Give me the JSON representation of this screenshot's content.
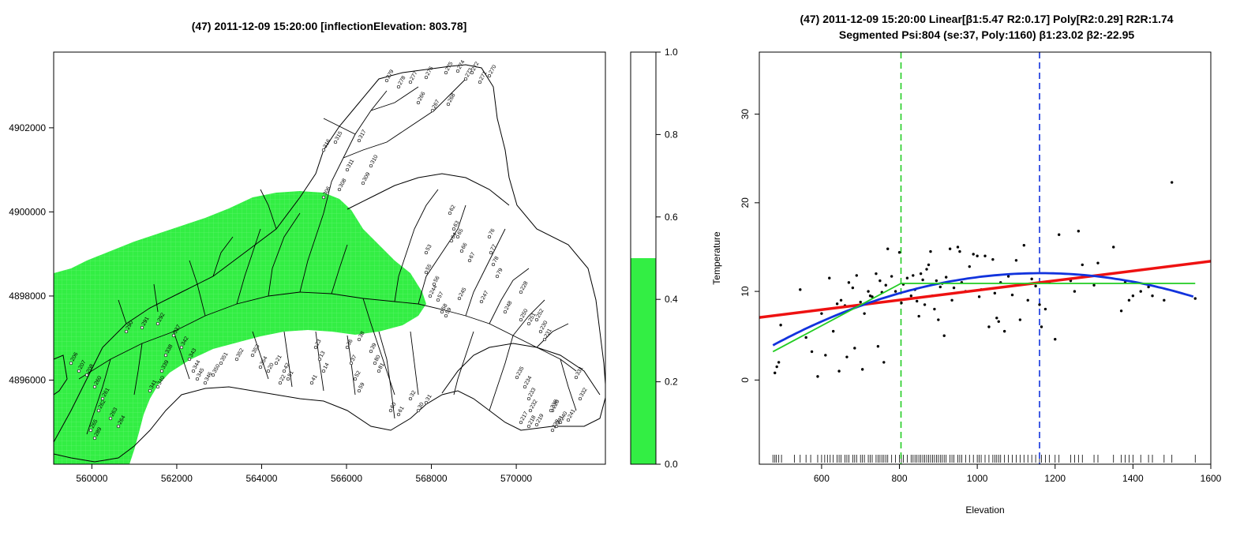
{
  "left_map": {
    "title": "(47) 2011-12-09 15:20:00 [inflectionElevation: 803.78]",
    "x_ticks": [
      "560000",
      "562000",
      "564000",
      "566000",
      "568000",
      "570000"
    ],
    "x_tick_values": [
      560000,
      562000,
      564000,
      566000,
      568000,
      570000
    ],
    "y_ticks": [
      "4902000",
      "4900000",
      "4898000",
      "4896000"
    ],
    "y_tick_values": [
      4902000,
      4900000,
      4898000,
      4896000
    ],
    "xlim": [
      559100,
      572100
    ],
    "ylim": [
      4894000,
      4903800
    ],
    "colors": {
      "highlight": "#33ee44",
      "outline": "#000000"
    },
    "site_labels": [
      "279",
      "278",
      "277",
      "276",
      "275",
      "274",
      "272",
      "270",
      "273",
      "271",
      "266",
      "267",
      "268",
      "316",
      "315",
      "317",
      "311",
      "309",
      "310",
      "306",
      "308",
      "62",
      "63",
      "64",
      "65",
      "66",
      "67",
      "76",
      "77",
      "78",
      "79",
      "53",
      "55",
      "56",
      "57",
      "58",
      "59",
      "244",
      "245",
      "247",
      "248",
      "250",
      "251",
      "252",
      "228",
      "230",
      "231",
      "235",
      "234",
      "233",
      "232",
      "217",
      "218",
      "219",
      "220",
      "241",
      "240",
      "241",
      "239",
      "238",
      "331",
      "332",
      "206",
      "207",
      "208",
      "260",
      "261",
      "262",
      "263",
      "264",
      "265",
      "289",
      "290",
      "291",
      "292",
      "337",
      "338",
      "339",
      "340",
      "341",
      "342",
      "343",
      "344",
      "345",
      "346",
      "350",
      "351",
      "352",
      "353",
      "354",
      "20",
      "21",
      "22",
      "23",
      "13",
      "14",
      "41",
      "42",
      "51",
      "52",
      "59",
      "60",
      "61",
      "30",
      "31",
      "32",
      "36",
      "37",
      "38",
      "39",
      "80",
      "81"
    ]
  },
  "colorbar": {
    "ticks": [
      "1.0",
      "0.8",
      "0.6",
      "0.4",
      "0.2",
      "0.0"
    ],
    "tick_values": [
      1.0,
      0.8,
      0.6,
      0.4,
      0.2,
      0.0
    ],
    "fill_value": 0.5,
    "fill_color": "#33ee44"
  },
  "chart_data": {
    "type": "scatter",
    "title": "(47) 2011-12-09 15:20:00 Linear[β1:5.47 R2:0.17] Poly[R2:0.29] R2R:1.74",
    "subtitle": "Segmented Psi:804 (se:37, Poly:1160) β1:23.02 β2:-22.95",
    "xlabel": "Elevation",
    "ylabel": "Temperature",
    "xlim": [
      440,
      1600
    ],
    "ylim": [
      -9.5,
      37
    ],
    "x_ticks": [
      "600",
      "800",
      "1000",
      "1200",
      "1400",
      "1600"
    ],
    "x_tick_values": [
      600,
      800,
      1000,
      1200,
      1400,
      1600
    ],
    "y_ticks": [
      "0",
      "10",
      "20",
      "30"
    ],
    "y_tick_values": [
      0,
      10,
      20,
      30
    ],
    "points": [
      [
        480,
        0.8
      ],
      [
        485,
        1.5
      ],
      [
        490,
        2.0
      ],
      [
        495,
        6.2
      ],
      [
        545,
        10.2
      ],
      [
        560,
        4.8
      ],
      [
        575,
        3.2
      ],
      [
        590,
        0.4
      ],
      [
        600,
        7.5
      ],
      [
        610,
        2.8
      ],
      [
        620,
        11.5
      ],
      [
        630,
        5.5
      ],
      [
        640,
        8.6
      ],
      [
        645,
        1.0
      ],
      [
        650,
        9.0
      ],
      [
        660,
        8.4
      ],
      [
        665,
        2.6
      ],
      [
        670,
        11.0
      ],
      [
        680,
        10.4
      ],
      [
        685,
        3.6
      ],
      [
        690,
        11.8
      ],
      [
        700,
        8.8
      ],
      [
        705,
        1.2
      ],
      [
        710,
        7.5
      ],
      [
        720,
        10.0
      ],
      [
        725,
        9.5
      ],
      [
        730,
        9.4
      ],
      [
        740,
        12.0
      ],
      [
        745,
        3.8
      ],
      [
        750,
        11.2
      ],
      [
        755,
        9.9
      ],
      [
        760,
        2.0
      ],
      [
        765,
        10.7
      ],
      [
        770,
        14.8
      ],
      [
        780,
        11.7
      ],
      [
        790,
        10.0
      ],
      [
        800,
        14.4
      ],
      [
        805,
        8.7
      ],
      [
        810,
        10.8
      ],
      [
        820,
        11.5
      ],
      [
        830,
        9.5
      ],
      [
        835,
        11.8
      ],
      [
        840,
        10.2
      ],
      [
        845,
        8.9
      ],
      [
        850,
        7.2
      ],
      [
        855,
        12.0
      ],
      [
        860,
        11.3
      ],
      [
        865,
        8.5
      ],
      [
        870,
        12.5
      ],
      [
        875,
        13.0
      ],
      [
        880,
        14.5
      ],
      [
        885,
        9.5
      ],
      [
        890,
        8.0
      ],
      [
        895,
        11.2
      ],
      [
        900,
        6.8
      ],
      [
        905,
        10.5
      ],
      [
        910,
        10.9
      ],
      [
        915,
        5.0
      ],
      [
        920,
        11.6
      ],
      [
        930,
        14.8
      ],
      [
        935,
        9.0
      ],
      [
        940,
        10.4
      ],
      [
        950,
        15.0
      ],
      [
        955,
        14.5
      ],
      [
        960,
        11.0
      ],
      [
        970,
        10.0
      ],
      [
        980,
        12.8
      ],
      [
        990,
        14.2
      ],
      [
        1000,
        14.0
      ],
      [
        1005,
        9.4
      ],
      [
        1010,
        10.2
      ],
      [
        1020,
        14.0
      ],
      [
        1030,
        6.0
      ],
      [
        1040,
        13.6
      ],
      [
        1045,
        9.8
      ],
      [
        1050,
        7.0
      ],
      [
        1055,
        6.6
      ],
      [
        1060,
        11.0
      ],
      [
        1070,
        5.5
      ],
      [
        1080,
        11.7
      ],
      [
        1090,
        9.6
      ],
      [
        1100,
        13.5
      ],
      [
        1110,
        6.8
      ],
      [
        1120,
        15.2
      ],
      [
        1130,
        9.0
      ],
      [
        1140,
        11.4
      ],
      [
        1150,
        10.6
      ],
      [
        1160,
        8.5
      ],
      [
        1165,
        6.0
      ],
      [
        1175,
        8.0
      ],
      [
        1185,
        11.0
      ],
      [
        1200,
        4.6
      ],
      [
        1210,
        16.4
      ],
      [
        1240,
        11.2
      ],
      [
        1250,
        10.0
      ],
      [
        1260,
        16.8
      ],
      [
        1270,
        13.0
      ],
      [
        1300,
        10.7
      ],
      [
        1310,
        13.2
      ],
      [
        1350,
        15.0
      ],
      [
        1370,
        7.8
      ],
      [
        1380,
        11.0
      ],
      [
        1390,
        9.0
      ],
      [
        1400,
        9.5
      ],
      [
        1420,
        10.0
      ],
      [
        1440,
        10.5
      ],
      [
        1450,
        9.5
      ],
      [
        1480,
        9.0
      ],
      [
        1500,
        22.3
      ],
      [
        1560,
        9.2
      ]
    ],
    "rug_x": [
      475,
      480,
      484,
      490,
      497,
      530,
      545,
      560,
      572,
      590,
      600,
      608,
      615,
      622,
      630,
      640,
      645,
      650,
      660,
      665,
      670,
      680,
      685,
      690,
      700,
      705,
      710,
      720,
      725,
      730,
      740,
      745,
      750,
      755,
      760,
      765,
      770,
      780,
      790,
      800,
      805,
      810,
      820,
      830,
      835,
      840,
      845,
      850,
      855,
      860,
      865,
      870,
      875,
      880,
      885,
      890,
      895,
      900,
      905,
      910,
      915,
      920,
      930,
      935,
      940,
      950,
      955,
      960,
      970,
      980,
      990,
      1000,
      1005,
      1010,
      1020,
      1030,
      1040,
      1045,
      1050,
      1055,
      1060,
      1070,
      1080,
      1090,
      1100,
      1110,
      1120,
      1130,
      1140,
      1150,
      1160,
      1165,
      1175,
      1185,
      1200,
      1210,
      1240,
      1250,
      1260,
      1270,
      1300,
      1310,
      1350,
      1370,
      1380,
      1390,
      1400,
      1420,
      1440,
      1450,
      1480,
      1500,
      1560
    ],
    "linear_fit": {
      "slope": 0.00547,
      "intercept": 4.65,
      "color": "#ee1111"
    },
    "poly_fit": {
      "coef": [
        -11.2,
        0.04,
        -1.72e-05
      ],
      "range": [
        475,
        1560
      ],
      "color": "#1133dd"
    },
    "segmented_fit": {
      "psi": 804,
      "start": [
        475,
        3.2
      ],
      "break": [
        804,
        10.9
      ],
      "end": [
        1560,
        10.9
      ],
      "color": "#22cc22"
    },
    "vlines": [
      {
        "x": 804,
        "color": "#22cc22"
      },
      {
        "x": 1160,
        "color": "#1133dd"
      }
    ]
  }
}
